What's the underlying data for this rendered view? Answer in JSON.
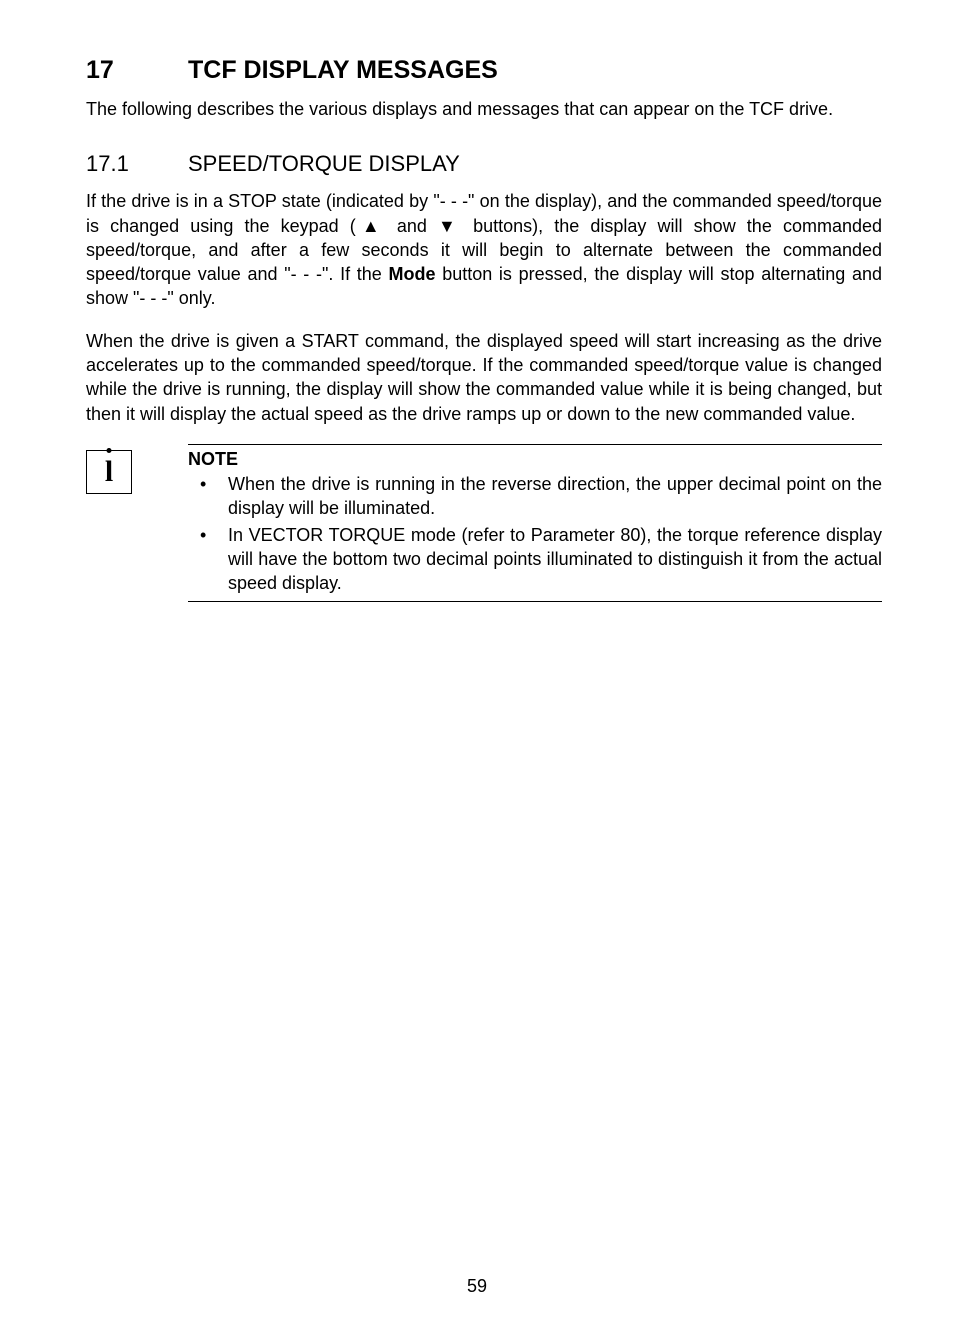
{
  "section": {
    "number": "17",
    "title": "TCF DISPLAY MESSAGES",
    "intro": "The following describes the various displays and messages that can appear on the TCF drive."
  },
  "subsection": {
    "number": "17.1",
    "title": "SPEED/TORQUE DISPLAY",
    "para1_a": "If the drive is in a STOP state (indicated by \"- - -\" on the display), and the commanded speed/torque is changed using the keypad (▲ and ▼ buttons), the display will show the commanded speed/torque, and after a few seconds it will begin to alternate between the commanded speed/torque value and \"- - -\". If the ",
    "para1_bold": "Mode",
    "para1_b": " button is pressed, the display will stop alternating and show \"- - -\" only.",
    "para2": "When the drive is given a START command, the displayed speed will start increasing as the drive accelerates up to the commanded speed/torque. If the commanded speed/torque value is changed while the drive is running, the display will show the commanded value while it is being changed, but then it will display the actual speed as the drive ramps up or down to the new commanded value."
  },
  "note": {
    "heading": "NOTE",
    "items": [
      "When the drive is running in the reverse direction, the upper decimal point on the display will be illuminated.",
      "In VECTOR TORQUE mode (refer to Parameter 80), the torque reference display will have the bottom two decimal points illuminated to distinguish it from the actual speed display."
    ]
  },
  "pageNumber": "59"
}
